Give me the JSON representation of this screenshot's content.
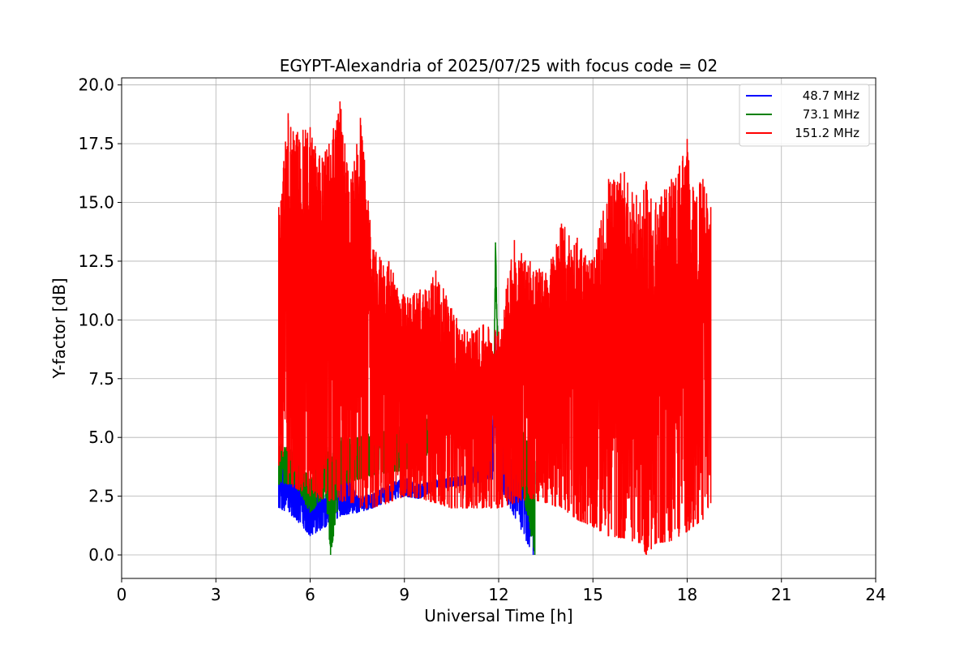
{
  "chart_data": {
    "type": "line",
    "title": "EGYPT-Alexandria of 2025/07/25 with focus code = 02",
    "xlabel": "Universal Time [h]",
    "ylabel": "Y-factor [dB]",
    "xlim": [
      0,
      24
    ],
    "ylim": [
      -1.0,
      20.3
    ],
    "xticks": [
      0,
      3,
      6,
      9,
      12,
      15,
      18,
      21,
      24
    ],
    "xtick_labels": [
      "0",
      "3",
      "6",
      "9",
      "12",
      "15",
      "18",
      "21",
      "24"
    ],
    "yticks": [
      0.0,
      2.5,
      5.0,
      7.5,
      10.0,
      12.5,
      15.0,
      17.5,
      20.0
    ],
    "ytick_labels": [
      "0.0",
      "2.5",
      "5.0",
      "7.5",
      "10.0",
      "12.5",
      "15.0",
      "17.5",
      "20.0"
    ],
    "grid": true,
    "legend_position": "top-right",
    "series": [
      {
        "name": "48.7 MHz",
        "color": "#0000ff",
        "x": [
          5.0,
          5.5,
          6.0,
          6.5,
          7.0,
          7.5,
          8.0,
          8.5,
          9.0,
          9.5,
          10.0,
          11.0,
          11.8,
          11.9,
          12.0,
          13.1,
          13.15
        ],
        "y_low": [
          2.0,
          1.6,
          0.8,
          1.2,
          1.7,
          1.8,
          2.0,
          2.3,
          2.5,
          2.4,
          2.8,
          3.0,
          3.2,
          6.0,
          3.0,
          0.0,
          3.0
        ],
        "y_high": [
          3.8,
          4.0,
          2.8,
          2.6,
          4.0,
          2.5,
          2.6,
          3.0,
          3.3,
          3.0,
          3.2,
          3.4,
          5.0,
          9.5,
          5.0,
          3.0,
          3.5
        ]
      },
      {
        "name": "73.1 MHz",
        "color": "#008000",
        "x": [
          5.0,
          5.5,
          6.0,
          6.5,
          6.65,
          7.0,
          7.5,
          8.0,
          9.0,
          10.0,
          11.0,
          11.5,
          11.85,
          11.9,
          12.0,
          12.2,
          13.15
        ],
        "y_low": [
          3.0,
          3.0,
          1.8,
          2.5,
          0.0,
          3.0,
          3.2,
          3.4,
          3.6,
          4.5,
          5.5,
          6.2,
          7.0,
          12.0,
          6.5,
          6.5,
          0.0
        ],
        "y_high": [
          4.8,
          4.5,
          3.2,
          4.5,
          4.8,
          5.0,
          5.0,
          5.3,
          5.5,
          6.0,
          6.5,
          7.0,
          7.5,
          13.3,
          7.5,
          7.5,
          4.0
        ]
      },
      {
        "name": "151.2 MHz",
        "color": "#ff0000",
        "x": [
          5.0,
          5.3,
          5.6,
          6.0,
          6.3,
          6.6,
          6.95,
          7.3,
          7.6,
          8.0,
          8.5,
          9.0,
          9.5,
          10.0,
          10.5,
          11.0,
          11.5,
          12.0,
          12.5,
          13.0,
          13.5,
          14.0,
          14.5,
          15.0,
          15.5,
          16.0,
          16.5,
          16.7,
          17.0,
          17.5,
          18.0,
          18.2,
          18.5,
          18.75
        ],
        "y_low": [
          3.8,
          3.0,
          2.8,
          2.5,
          2.4,
          2.3,
          2.3,
          2.2,
          2.0,
          2.0,
          2.2,
          2.5,
          2.4,
          2.2,
          2.0,
          2.0,
          2.0,
          2.0,
          2.2,
          2.4,
          2.2,
          2.0,
          1.5,
          1.2,
          0.8,
          0.7,
          0.5,
          0.0,
          0.5,
          0.6,
          1.0,
          1.2,
          1.5,
          2.2
        ],
        "y_high": [
          14.8,
          18.8,
          18.0,
          18.2,
          17.0,
          17.5,
          19.3,
          16.0,
          18.6,
          13.0,
          12.5,
          11.0,
          11.3,
          12.1,
          10.5,
          9.5,
          9.8,
          9.5,
          13.4,
          12.5,
          12.0,
          14.1,
          13.5,
          12.5,
          16.0,
          16.3,
          15.0,
          15.9,
          15.0,
          16.0,
          17.7,
          15.5,
          16.0,
          14.8
        ]
      }
    ]
  }
}
